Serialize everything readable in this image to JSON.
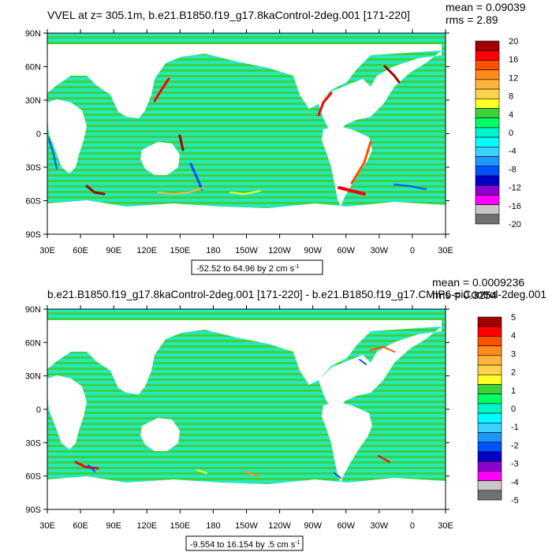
{
  "panels": [
    {
      "title": "VVEL at z= 305.1m, b.e21.B1850.f19_g17.8kaControl-2deg.001 [171-220]",
      "mean_label": "mean = 0.09039",
      "rms_label": "rms = 2.89",
      "range_label": "-52.52 to 64.96 by 2 cm s",
      "range_unit_exp": "-1",
      "colorbar": {
        "labels": [
          "20",
          "16",
          "12",
          "8",
          "4",
          "0",
          "-4",
          "-8",
          "-12",
          "-16",
          "-20"
        ],
        "colors": [
          "#a00000",
          "#ff0000",
          "#ff5000",
          "#ff8c1a",
          "#ffb33c",
          "#ffd24d",
          "#ffff28",
          "#3cd23c",
          "#00ff64",
          "#00f5c8",
          "#00ffff",
          "#3cd2ff",
          "#1e96ff",
          "#0050ff",
          "#0000c8",
          "#8c00d2",
          "#ff00ff",
          "#c8c8c8",
          "#707070"
        ]
      }
    },
    {
      "title": "b.e21.B1850.f19_g17.8kaControl-2deg.001 [171-220] - b.e21.B1850.f19_g17.CMIP6-piControl-2deg.001",
      "mean_label": "mean = 0.0009236",
      "rms_label": "rms = 0.3254",
      "range_label": "-9.554 to 16.154 by .5 cm s",
      "range_unit_exp": "-1",
      "colorbar": {
        "labels": [
          "5",
          "4",
          "3",
          "2",
          "1",
          "0",
          "-1",
          "-2",
          "-3",
          "-4",
          "-5"
        ],
        "colors": [
          "#a00000",
          "#ff0000",
          "#ff5000",
          "#ff8c1a",
          "#ffb33c",
          "#ffd24d",
          "#ffff28",
          "#3cd23c",
          "#00ff64",
          "#00f5c8",
          "#00ffff",
          "#3cd2ff",
          "#1e96ff",
          "#0050ff",
          "#0000c8",
          "#8c00d2",
          "#ff00ff",
          "#c8c8c8",
          "#707070"
        ]
      }
    }
  ],
  "axes": {
    "lat_labels": [
      "90N",
      "60N",
      "30N",
      "0",
      "30S",
      "60S",
      "90S"
    ],
    "lon_labels": [
      "30E",
      "60E",
      "90E",
      "120E",
      "150E",
      "180",
      "150W",
      "120W",
      "90W",
      "60W",
      "30W",
      "0",
      "30E"
    ]
  },
  "colors": {
    "ocean_main": "#26e8c0",
    "ocean_alt": "#3cd23c",
    "land": "#ffffff",
    "pos_feature": "#ff8c1a",
    "neg_feature": "#0050ff"
  }
}
